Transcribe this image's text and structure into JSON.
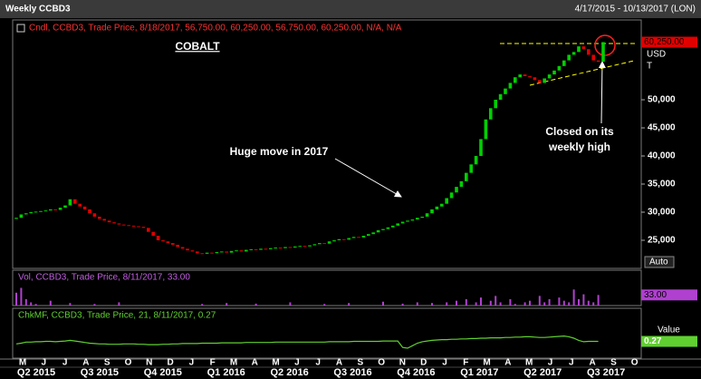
{
  "header": {
    "title": "Weekly CCBD3",
    "range": "4/17/2015 - 10/13/2017 (LON)"
  },
  "chart_data": {
    "type": "candlestick",
    "legend": "Cndl, CCBD3, Trade Price, 8/18/2017, 56,750.00, 60,250.00, 56,750.00, 60,250.00, N/A, N/A",
    "up_color": "#00d000",
    "down_color": "#e00000",
    "open": [
      28800,
      29000,
      29600,
      29800,
      30000,
      30100,
      30200,
      30300,
      30500,
      30400,
      30800,
      31200,
      32300,
      31500,
      31000,
      30500,
      29800,
      29200,
      28800,
      28500,
      28200,
      28000,
      27800,
      27700,
      27600,
      27500,
      27400,
      27200,
      26500,
      25800,
      25000,
      24800,
      24500,
      24200,
      23800,
      23500,
      23200,
      23000,
      22700,
      22600,
      22800,
      22700,
      22900,
      23000,
      22800,
      23100,
      23200,
      23000,
      23300,
      23400,
      23300,
      23500,
      23400,
      23600,
      23700,
      23600,
      23800,
      23700,
      23900,
      24000,
      23900,
      24100,
      24300,
      24500,
      24400,
      24800,
      25000,
      25200,
      25100,
      25400,
      25600,
      25500,
      25800,
      26100,
      26400,
      26800,
      27000,
      27300,
      27600,
      28000,
      28300,
      28500,
      28700,
      29000,
      29200,
      29800,
      30500,
      31000,
      31500,
      32500,
      33500,
      34500,
      35500,
      37000,
      38500,
      40000,
      43000,
      46500,
      48500,
      50000,
      51000,
      52000,
      53000,
      54000,
      54500,
      54200,
      54000,
      53500,
      53000,
      53800,
      54500,
      55200,
      56000,
      57000,
      58000,
      58500,
      59500,
      59000,
      58000,
      57000,
      56750
    ],
    "close": [
      29000,
      29600,
      29800,
      30000,
      30100,
      30200,
      30300,
      30500,
      30400,
      30800,
      31200,
      32300,
      31500,
      31000,
      30500,
      29800,
      29200,
      28800,
      28500,
      28200,
      28000,
      27800,
      27700,
      27600,
      27500,
      27400,
      27200,
      26500,
      25800,
      25000,
      24800,
      24500,
      24200,
      23800,
      23500,
      23200,
      23000,
      22700,
      22600,
      22800,
      22700,
      22900,
      23000,
      22800,
      23100,
      23200,
      23000,
      23300,
      23400,
      23300,
      23500,
      23400,
      23600,
      23700,
      23600,
      23800,
      23700,
      23900,
      24000,
      23900,
      24100,
      24300,
      24500,
      24400,
      24800,
      25000,
      25200,
      25100,
      25400,
      25600,
      25500,
      25800,
      26100,
      26400,
      26800,
      27000,
      27300,
      27600,
      28000,
      28300,
      28500,
      28700,
      29000,
      29200,
      29800,
      30500,
      31000,
      31500,
      32500,
      33500,
      34500,
      35500,
      37000,
      38500,
      40000,
      43000,
      46500,
      48500,
      50000,
      51000,
      52000,
      53000,
      54000,
      54500,
      54200,
      54000,
      53500,
      53000,
      53800,
      54500,
      55200,
      56000,
      57000,
      58000,
      58500,
      59500,
      59000,
      58000,
      57000,
      56750,
      60250
    ],
    "ylim": [
      20000,
      64200
    ],
    "yticks": [
      {
        "value": 25000,
        "label": "25,000"
      },
      {
        "value": 30000,
        "label": "30,000"
      },
      {
        "value": 35000,
        "label": "35,000"
      },
      {
        "value": 40000,
        "label": "40,000"
      },
      {
        "value": 45000,
        "label": "45,000"
      },
      {
        "value": 50000,
        "label": "50,000"
      }
    ],
    "unit": "USD",
    "unit2": "T",
    "scale_mode": "Auto",
    "last_label": {
      "value": 60250,
      "label": "60,250.00"
    },
    "annotations": [
      "COBALT",
      "Huge move in 2017",
      "Closed on its",
      "weekly high"
    ],
    "months": [
      "M",
      "J",
      "J",
      "A",
      "S",
      "O",
      "N",
      "D",
      "J",
      "F",
      "M",
      "A",
      "M",
      "J",
      "J",
      "A",
      "S",
      "O",
      "N",
      "D",
      "J",
      "F",
      "M",
      "A",
      "M",
      "J",
      "J",
      "A",
      "S",
      "O"
    ],
    "quarters": [
      "Q2 2015",
      "Q3 2015",
      "Q4 2015",
      "Q1 2016",
      "Q2 2016",
      "Q3 2016",
      "Q4 2016",
      "Q1 2017",
      "Q2 2017",
      "Q3 2017"
    ],
    "volume": {
      "legend": "Vol, CCBD3, Trade Price, 8/11/2017, 33.00",
      "color": "#b040d0",
      "ylim": [
        0,
        110
      ],
      "last_label": {
        "value": 33,
        "label": "33.00"
      },
      "values": [
        40,
        55,
        20,
        10,
        5,
        0,
        0,
        15,
        0,
        0,
        0,
        8,
        0,
        0,
        0,
        0,
        5,
        0,
        0,
        0,
        0,
        10,
        0,
        0,
        0,
        0,
        0,
        0,
        0,
        0,
        0,
        0,
        0,
        0,
        0,
        0,
        0,
        0,
        5,
        0,
        0,
        0,
        0,
        8,
        0,
        0,
        0,
        0,
        0,
        6,
        0,
        0,
        0,
        0,
        0,
        0,
        10,
        0,
        0,
        0,
        0,
        0,
        0,
        5,
        0,
        0,
        0,
        0,
        8,
        0,
        0,
        0,
        0,
        0,
        0,
        12,
        0,
        0,
        0,
        6,
        0,
        0,
        10,
        0,
        0,
        8,
        0,
        0,
        10,
        0,
        15,
        0,
        20,
        0,
        10,
        25,
        0,
        15,
        30,
        10,
        0,
        20,
        5,
        0,
        10,
        15,
        0,
        30,
        10,
        20,
        0,
        25,
        15,
        10,
        50,
        20,
        35,
        15,
        10,
        33,
        null
      ]
    },
    "mf": {
      "legend": "ChkMF, CCBD3, Trade Price, 21, 8/11/2017, 0.27",
      "color": "#60d030",
      "ylim": [
        -0.2,
        1.2
      ],
      "axis_label": "Value",
      "last_label": {
        "value": 0.27,
        "label": "0.27"
      },
      "values": [
        0.2,
        0.22,
        0.25,
        0.25,
        0.26,
        0.26,
        0.27,
        0.27,
        0.26,
        0.27,
        0.28,
        0.3,
        0.28,
        0.26,
        0.24,
        0.22,
        0.21,
        0.2,
        0.2,
        0.19,
        0.19,
        0.19,
        0.2,
        0.2,
        0.2,
        0.19,
        0.19,
        0.18,
        0.18,
        0.18,
        0.19,
        0.19,
        0.2,
        0.2,
        0.21,
        0.21,
        0.21,
        0.21,
        0.22,
        0.22,
        0.22,
        0.22,
        0.23,
        0.23,
        0.23,
        0.23,
        0.23,
        0.24,
        0.24,
        0.24,
        0.24,
        0.24,
        0.24,
        0.25,
        0.25,
        0.25,
        0.25,
        0.25,
        0.25,
        0.25,
        0.25,
        0.25,
        0.25,
        0.25,
        0.26,
        0.26,
        0.26,
        0.26,
        0.26,
        0.27,
        0.27,
        0.27,
        0.27,
        0.27,
        0.27,
        0.28,
        0.28,
        0.28,
        0.28,
        0.1,
        0.08,
        0.15,
        0.22,
        0.26,
        0.28,
        0.3,
        0.31,
        0.32,
        0.32,
        0.33,
        0.33,
        0.34,
        0.34,
        0.35,
        0.35,
        0.36,
        0.36,
        0.37,
        0.37,
        0.37,
        0.38,
        0.38,
        0.39,
        0.39,
        0.4,
        0.4,
        0.39,
        0.38,
        0.38,
        0.39,
        0.4,
        0.41,
        0.42,
        0.4,
        0.36,
        0.3,
        0.26,
        0.27,
        0.27,
        0.27,
        null
      ]
    }
  }
}
